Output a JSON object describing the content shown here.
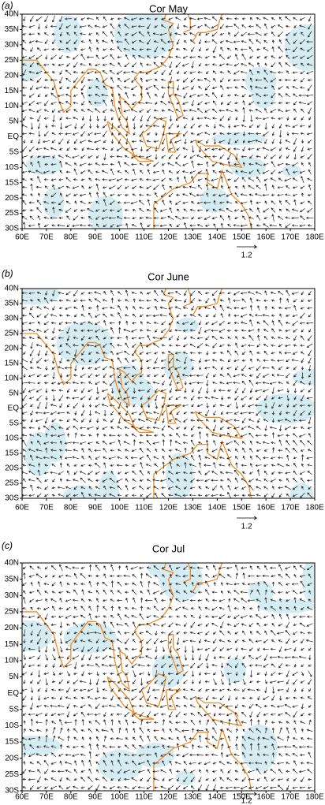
{
  "panels": [
    {
      "label": "(a)",
      "title": "Cor May"
    },
    {
      "label": "(b)",
      "title": "Cor June"
    },
    {
      "label": "(c)",
      "title": "Cor Jul"
    }
  ],
  "xlim": [
    60,
    180
  ],
  "ylim": [
    -30,
    40
  ],
  "xticks": [
    {
      "value": 60,
      "label": "60E"
    },
    {
      "value": 70,
      "label": "70E"
    },
    {
      "value": 80,
      "label": "80E"
    },
    {
      "value": 90,
      "label": "90E"
    },
    {
      "value": 100,
      "label": "100E"
    },
    {
      "value": 110,
      "label": "110E"
    },
    {
      "value": 120,
      "label": "120E"
    },
    {
      "value": 130,
      "label": "130E"
    },
    {
      "value": 140,
      "label": "140E"
    },
    {
      "value": 150,
      "label": "150E"
    },
    {
      "value": 160,
      "label": "160E"
    },
    {
      "value": 170,
      "label": "170E"
    },
    {
      "value": 180,
      "label": "180E"
    }
  ],
  "yticks": [
    {
      "value": 40,
      "label": "40N"
    },
    {
      "value": 35,
      "label": "35N"
    },
    {
      "value": 30,
      "label": "30N"
    },
    {
      "value": 25,
      "label": "25N"
    },
    {
      "value": 20,
      "label": "20N"
    },
    {
      "value": 15,
      "label": "15N"
    },
    {
      "value": 10,
      "label": "10N"
    },
    {
      "value": 5,
      "label": "5N"
    },
    {
      "value": 0,
      "label": "EQ"
    },
    {
      "value": -5,
      "label": "5S"
    },
    {
      "value": -10,
      "label": "10S"
    },
    {
      "value": -15,
      "label": "15S"
    },
    {
      "value": -20,
      "label": "20S"
    },
    {
      "value": -25,
      "label": "25S"
    },
    {
      "value": -30,
      "label": "30S"
    }
  ],
  "reference_vector": 1.2
}
